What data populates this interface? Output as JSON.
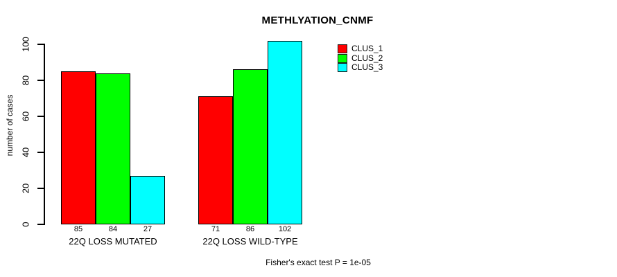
{
  "figure": {
    "background": "#ffffff",
    "text_color": "#000000",
    "axis_color": "#000000"
  },
  "chart_data": {
    "type": "bar",
    "title": "METHLYATION_CNMF",
    "ylabel": "number of cases",
    "xlabel": "",
    "categories": [
      "22Q LOSS MUTATED",
      "22Q LOSS WILD-TYPE"
    ],
    "series": [
      {
        "name": "CLUS_1",
        "color": "#ff0000",
        "values": [
          85,
          71
        ]
      },
      {
        "name": "CLUS_2",
        "color": "#00ff00",
        "values": [
          84,
          86
        ]
      },
      {
        "name": "CLUS_3",
        "color": "#00ffff",
        "values": [
          27,
          102
        ]
      }
    ],
    "bar_value_labels": [
      [
        "85",
        "84",
        "27"
      ],
      [
        "71",
        "86",
        "102"
      ]
    ],
    "ylim": [
      0,
      100
    ],
    "yticks": [
      0,
      20,
      40,
      60,
      80,
      100
    ],
    "grid": false,
    "bar_border_color": "#000000",
    "legend_position": "top-right",
    "legend_entries": [
      "CLUS_1",
      "CLUS_2",
      "CLUS_3"
    ],
    "annotation": "Fisher's exact test P = 1e-05"
  }
}
